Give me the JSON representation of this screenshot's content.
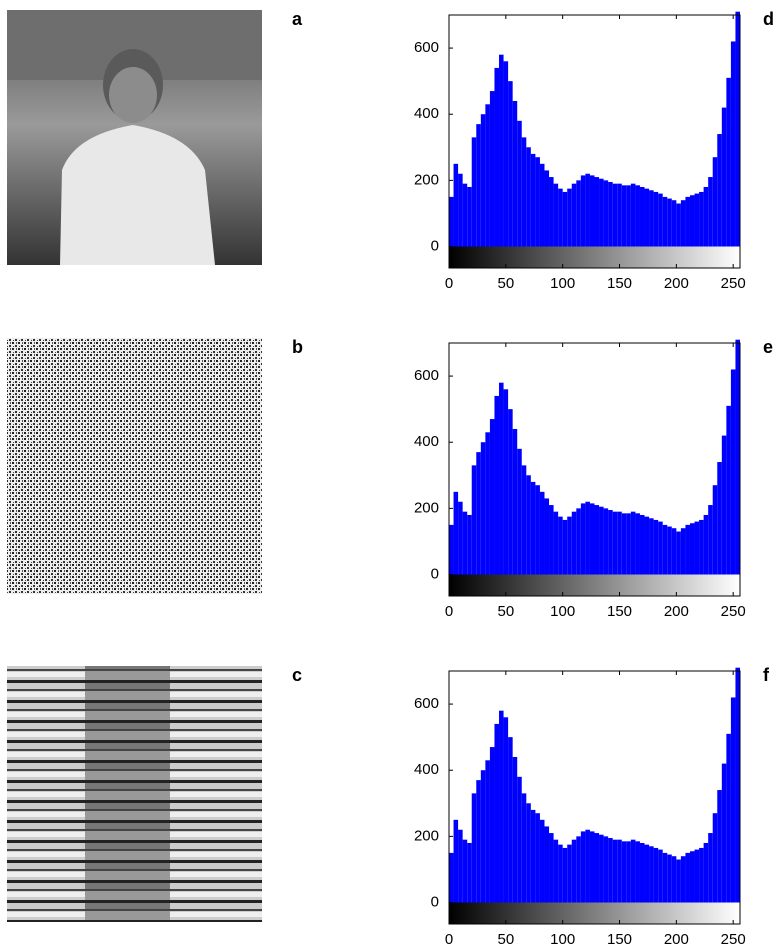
{
  "image_panels": [
    "a",
    "b",
    "c"
  ],
  "chart_data": [
    {
      "type": "histogram",
      "panel_label": "d",
      "color": "#0000ff",
      "bins": [
        0,
        4,
        8,
        12,
        16,
        20,
        24,
        28,
        32,
        36,
        40,
        44,
        48,
        52,
        56,
        60,
        64,
        68,
        72,
        76,
        80,
        84,
        88,
        92,
        96,
        100,
        104,
        108,
        112,
        116,
        120,
        124,
        128,
        132,
        136,
        140,
        144,
        148,
        152,
        156,
        160,
        164,
        168,
        172,
        176,
        180,
        184,
        188,
        192,
        196,
        200,
        204,
        208,
        212,
        216,
        220,
        224,
        228,
        232,
        236,
        240,
        244,
        248,
        252,
        256
      ],
      "values": [
        150,
        250,
        220,
        190,
        180,
        330,
        370,
        400,
        430,
        470,
        540,
        580,
        560,
        500,
        440,
        380,
        330,
        300,
        280,
        270,
        250,
        230,
        210,
        190,
        175,
        165,
        175,
        190,
        200,
        215,
        220,
        215,
        210,
        205,
        200,
        195,
        190,
        190,
        185,
        185,
        190,
        185,
        180,
        175,
        170,
        165,
        160,
        150,
        145,
        140,
        130,
        140,
        150,
        155,
        160,
        165,
        180,
        210,
        270,
        340,
        420,
        510,
        620,
        710
      ],
      "xlim": [
        0,
        256
      ],
      "ylim": [
        -65,
        700
      ],
      "xticks": [
        0,
        50,
        100,
        150,
        200,
        250
      ],
      "yticks": [
        0,
        200,
        400,
        600
      ]
    },
    {
      "type": "histogram",
      "panel_label": "e",
      "color": "#0000ff",
      "bins": [
        0,
        4,
        8,
        12,
        16,
        20,
        24,
        28,
        32,
        36,
        40,
        44,
        48,
        52,
        56,
        60,
        64,
        68,
        72,
        76,
        80,
        84,
        88,
        92,
        96,
        100,
        104,
        108,
        112,
        116,
        120,
        124,
        128,
        132,
        136,
        140,
        144,
        148,
        152,
        156,
        160,
        164,
        168,
        172,
        176,
        180,
        184,
        188,
        192,
        196,
        200,
        204,
        208,
        212,
        216,
        220,
        224,
        228,
        232,
        236,
        240,
        244,
        248,
        252,
        256
      ],
      "values": [
        150,
        250,
        220,
        190,
        180,
        330,
        370,
        400,
        430,
        470,
        540,
        580,
        560,
        500,
        440,
        380,
        330,
        300,
        280,
        270,
        250,
        230,
        210,
        190,
        175,
        165,
        175,
        190,
        200,
        215,
        220,
        215,
        210,
        205,
        200,
        195,
        190,
        190,
        185,
        185,
        190,
        185,
        180,
        175,
        170,
        165,
        160,
        150,
        145,
        140,
        130,
        140,
        150,
        155,
        160,
        165,
        180,
        210,
        270,
        340,
        420,
        510,
        620,
        710
      ],
      "xlim": [
        0,
        256
      ],
      "ylim": [
        -65,
        700
      ],
      "xticks": [
        0,
        50,
        100,
        150,
        200,
        250
      ],
      "yticks": [
        0,
        200,
        400,
        600
      ]
    },
    {
      "type": "histogram",
      "panel_label": "f",
      "color": "#0000ff",
      "bins": [
        0,
        4,
        8,
        12,
        16,
        20,
        24,
        28,
        32,
        36,
        40,
        44,
        48,
        52,
        56,
        60,
        64,
        68,
        72,
        76,
        80,
        84,
        88,
        92,
        96,
        100,
        104,
        108,
        112,
        116,
        120,
        124,
        128,
        132,
        136,
        140,
        144,
        148,
        152,
        156,
        160,
        164,
        168,
        172,
        176,
        180,
        184,
        188,
        192,
        196,
        200,
        204,
        208,
        212,
        216,
        220,
        224,
        228,
        232,
        236,
        240,
        244,
        248,
        252,
        256
      ],
      "values": [
        150,
        250,
        220,
        190,
        180,
        330,
        370,
        400,
        430,
        470,
        540,
        580,
        560,
        500,
        440,
        380,
        330,
        300,
        280,
        270,
        250,
        230,
        210,
        190,
        175,
        165,
        175,
        190,
        200,
        215,
        220,
        215,
        210,
        205,
        200,
        195,
        190,
        190,
        185,
        185,
        190,
        185,
        180,
        175,
        170,
        165,
        160,
        150,
        145,
        140,
        130,
        140,
        150,
        155,
        160,
        165,
        180,
        210,
        270,
        340,
        420,
        510,
        620,
        710
      ],
      "xlim": [
        0,
        256
      ],
      "ylim": [
        -65,
        700
      ],
      "xticks": [
        0,
        50,
        100,
        150,
        200,
        250
      ],
      "yticks": [
        0,
        200,
        400,
        600
      ]
    }
  ]
}
